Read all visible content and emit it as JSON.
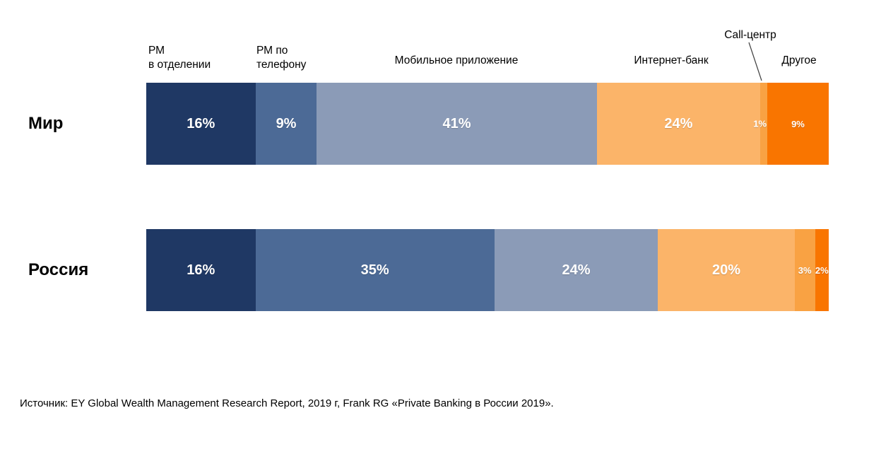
{
  "chart_data": {
    "type": "bar",
    "stacked": true,
    "orientation": "horizontal",
    "unit": "%",
    "categories": [
      "РМ в отделении",
      "РМ по телефону",
      "Мобильное приложение",
      "Интернет-банк",
      "Call-центр",
      "Другое"
    ],
    "series": [
      {
        "name": "Мир",
        "values": [
          16,
          9,
          41,
          24,
          1,
          9
        ]
      },
      {
        "name": "Россия",
        "values": [
          16,
          35,
          24,
          20,
          3,
          2
        ]
      }
    ],
    "colors": [
      "#1F3864",
      "#4C6A96",
      "#8B9BB7",
      "#FBB469",
      "#F9A243",
      "#F97500"
    ],
    "xlim": [
      0,
      100
    ],
    "grid": false,
    "value_labels": "inside segments, white, with % suffix",
    "legend_position": "category names as column headers above bars"
  },
  "header_labels": [
    {
      "text": "РМ\nв отделении"
    },
    {
      "text": "РМ по\nтелефону"
    },
    {
      "text": "Мобильное приложение"
    },
    {
      "text": "Интернет-банк"
    },
    {
      "text": "Call-центр"
    },
    {
      "text": "Другое"
    }
  ],
  "source_note": "Источник: EY Global Wealth Management Research Report, 2019 г, Frank RG «Private Banking в России 2019»."
}
